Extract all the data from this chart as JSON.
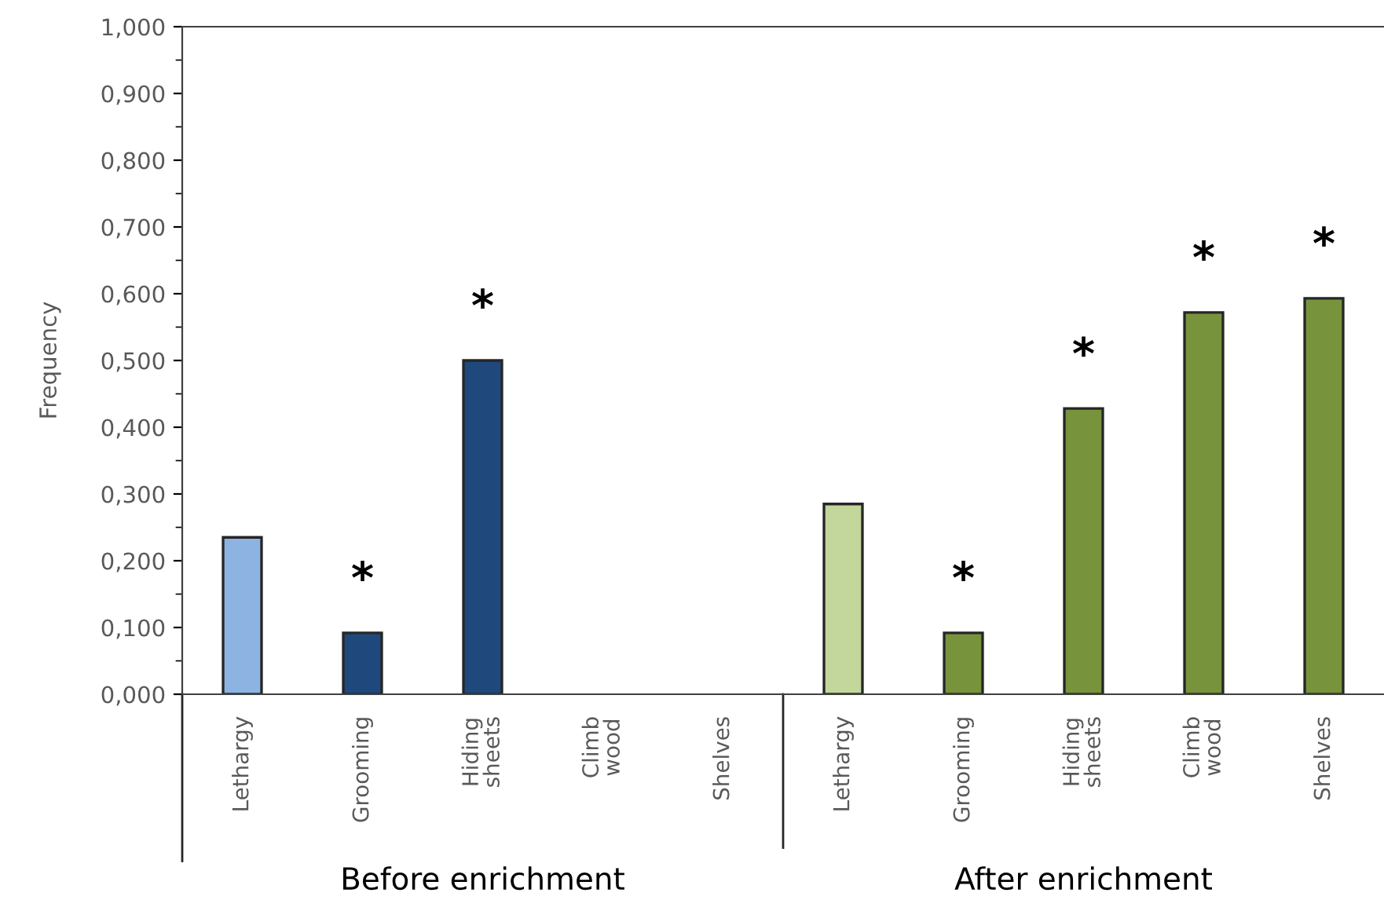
{
  "chart_data": {
    "type": "bar",
    "ylabel": "Frequency",
    "categories": [
      "Lethargy",
      "Grooming",
      "Hiding\nsheets",
      "Climb\nwood",
      "Shelves",
      "Lethargy",
      "Grooming",
      "Hiding\nsheets",
      "Climb\nwood",
      "Shelves"
    ],
    "values": [
      0.235,
      0.092,
      0.5,
      null,
      null,
      0.285,
      0.092,
      0.428,
      0.572,
      0.593
    ],
    "colors": [
      "#8db3e2",
      "#1f497d",
      "#1f497d",
      "#1f497d",
      "#1f497d",
      "#c3d69b",
      "#77933c",
      "#77933c",
      "#77933c",
      "#77933c"
    ],
    "value_labels": [
      null,
      "*",
      "*",
      null,
      null,
      null,
      "*",
      "*",
      "*",
      "*"
    ],
    "annotations": [
      "Before enrichment",
      "After enrichment"
    ],
    "ylim": [
      0,
      1
    ],
    "yticks": [
      {
        "value": 0,
        "label": "0,000"
      },
      {
        "value": 0.1,
        "label": "0,100"
      },
      {
        "value": 0.2,
        "label": "0,200"
      },
      {
        "value": 0.3,
        "label": "0,300"
      },
      {
        "value": 0.4,
        "label": "0,400"
      },
      {
        "value": 0.5,
        "label": "0,500"
      },
      {
        "value": 0.6,
        "label": "0,600"
      },
      {
        "value": 0.7,
        "label": "0,700"
      },
      {
        "value": 0.8,
        "label": "0,800"
      },
      {
        "value": 0.9,
        "label": "0,900"
      },
      {
        "value": 1,
        "label": "1,000"
      }
    ],
    "grid": false,
    "legend": false
  }
}
